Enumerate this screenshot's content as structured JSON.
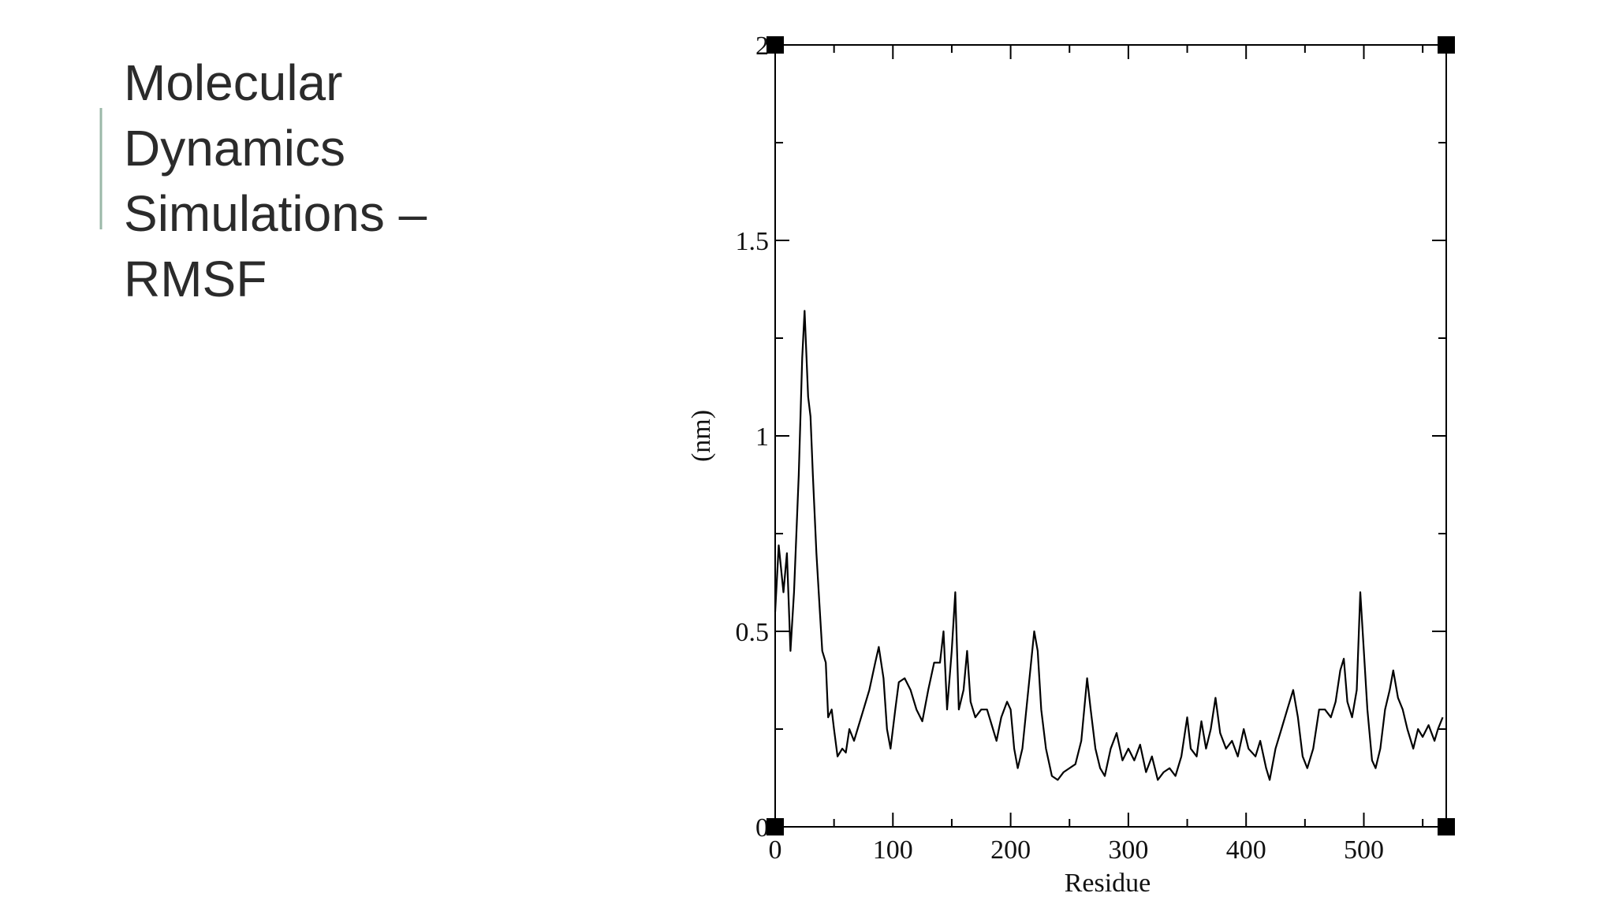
{
  "slide": {
    "title_lines": [
      "Molecular",
      "Dynamics",
      "Simulations –",
      "RMSF"
    ]
  },
  "chart_data": {
    "type": "line",
    "xlabel": "Residue",
    "ylabel": "(nm)",
    "color": "#000000",
    "xlim": [
      0,
      570
    ],
    "ylim": [
      0,
      2
    ],
    "xticks": [
      0,
      100,
      200,
      300,
      400,
      500
    ],
    "xticks_minor": [
      50,
      150,
      250,
      350,
      450,
      550
    ],
    "yticks": [
      0,
      0.5,
      1,
      1.5,
      2
    ],
    "yticks_minor": [
      0.25,
      0.75,
      1.25,
      1.75
    ],
    "x": [
      0,
      3,
      7,
      10,
      13,
      16,
      20,
      23,
      25,
      28,
      30,
      32,
      35,
      38,
      40,
      43,
      45,
      48,
      50,
      53,
      57,
      60,
      63,
      67,
      70,
      75,
      80,
      85,
      88,
      92,
      95,
      98,
      102,
      105,
      110,
      115,
      120,
      125,
      130,
      135,
      140,
      143,
      146,
      150,
      153,
      156,
      160,
      163,
      166,
      170,
      175,
      180,
      185,
      188,
      192,
      197,
      200,
      203,
      206,
      210,
      215,
      220,
      223,
      226,
      230,
      235,
      240,
      245,
      250,
      255,
      260,
      265,
      268,
      272,
      276,
      280,
      285,
      290,
      295,
      300,
      305,
      310,
      315,
      320,
      325,
      330,
      335,
      340,
      345,
      350,
      353,
      358,
      362,
      366,
      370,
      374,
      378,
      383,
      388,
      393,
      398,
      402,
      408,
      412,
      417,
      420,
      425,
      430,
      435,
      440,
      444,
      448,
      452,
      457,
      462,
      467,
      472,
      476,
      480,
      483,
      486,
      490,
      494,
      497,
      500,
      503,
      507,
      510,
      514,
      518,
      522,
      525,
      529,
      533,
      537,
      542,
      546,
      550,
      555,
      560,
      563,
      567
    ],
    "values": [
      0.55,
      0.72,
      0.6,
      0.7,
      0.45,
      0.6,
      0.9,
      1.2,
      1.32,
      1.1,
      1.05,
      0.9,
      0.7,
      0.55,
      0.45,
      0.42,
      0.28,
      0.3,
      0.25,
      0.18,
      0.2,
      0.19,
      0.25,
      0.22,
      0.25,
      0.3,
      0.35,
      0.42,
      0.46,
      0.38,
      0.25,
      0.2,
      0.3,
      0.37,
      0.38,
      0.35,
      0.3,
      0.27,
      0.35,
      0.42,
      0.42,
      0.5,
      0.3,
      0.45,
      0.6,
      0.3,
      0.35,
      0.45,
      0.32,
      0.28,
      0.3,
      0.3,
      0.25,
      0.22,
      0.28,
      0.32,
      0.3,
      0.2,
      0.15,
      0.2,
      0.35,
      0.5,
      0.45,
      0.3,
      0.2,
      0.13,
      0.12,
      0.14,
      0.15,
      0.16,
      0.22,
      0.38,
      0.3,
      0.2,
      0.15,
      0.13,
      0.2,
      0.24,
      0.17,
      0.2,
      0.17,
      0.21,
      0.14,
      0.18,
      0.12,
      0.14,
      0.15,
      0.13,
      0.18,
      0.28,
      0.2,
      0.18,
      0.27,
      0.2,
      0.25,
      0.33,
      0.24,
      0.2,
      0.22,
      0.18,
      0.25,
      0.2,
      0.18,
      0.22,
      0.15,
      0.12,
      0.2,
      0.25,
      0.3,
      0.35,
      0.28,
      0.18,
      0.15,
      0.2,
      0.3,
      0.3,
      0.28,
      0.32,
      0.4,
      0.43,
      0.32,
      0.28,
      0.35,
      0.6,
      0.45,
      0.3,
      0.17,
      0.15,
      0.2,
      0.3,
      0.35,
      0.4,
      0.33,
      0.3,
      0.25,
      0.2,
      0.25,
      0.23,
      0.26,
      0.22,
      0.25,
      0.28
    ]
  }
}
